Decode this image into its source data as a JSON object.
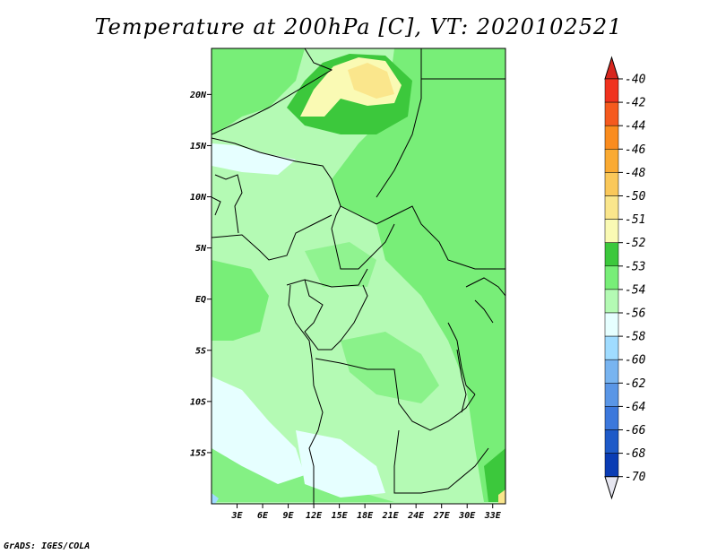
{
  "title": "Temperature at 200hPa [C], VT: 2020102521",
  "footer": "GrADS: IGES/COLA",
  "map": {
    "lat_labels": [
      "20N",
      "15N",
      "10N",
      "5N",
      "EQ",
      "5S",
      "10S",
      "15S"
    ],
    "lat_values": [
      20,
      15,
      10,
      5,
      0,
      -5,
      -10,
      -15
    ],
    "lon_labels": [
      "3E",
      "6E",
      "9E",
      "12E",
      "15E",
      "18E",
      "21E",
      "24E",
      "27E",
      "30E",
      "33E"
    ],
    "lon_values": [
      3,
      6,
      9,
      12,
      15,
      18,
      21,
      24,
      27,
      30,
      33
    ],
    "lon_range": [
      0,
      34.5
    ],
    "lat_range": [
      -20,
      24.5
    ]
  },
  "colorbar": {
    "labels": [
      "-40",
      "-42",
      "-44",
      "-46",
      "-48",
      "-50",
      "-51",
      "-52",
      "-53",
      "-54",
      "-56",
      "-58",
      "-60",
      "-62",
      "-64",
      "-66",
      "-68",
      "-70"
    ],
    "colors": {
      "top_triangle": "#d7261e",
      "bins": [
        "#f0321e",
        "#f55a1e",
        "#fa8c1e",
        "#faaa32",
        "#fac85a",
        "#fae68c",
        "#fafab4",
        "#3cc83c",
        "#78ee78",
        "#b4fab4",
        "#e6ffff",
        "#a0dcff",
        "#78b4f0",
        "#5a96e6",
        "#3c78dc",
        "#1e5ac8",
        "#0a3cb4",
        "#000a78"
      ],
      "bottom_triangle": "#e6e6f0"
    }
  }
}
